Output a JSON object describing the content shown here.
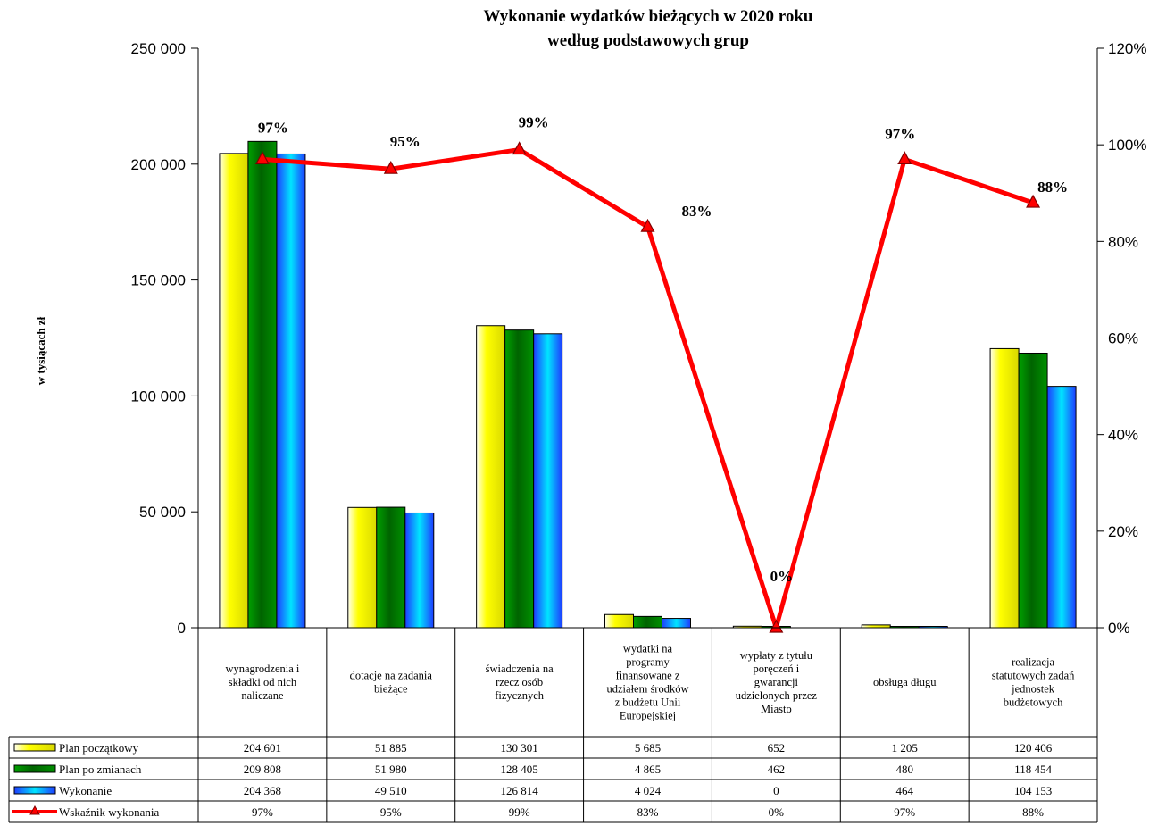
{
  "chart_data": {
    "type": "bar",
    "title": [
      "Wykonanie wydatków bieżących  w  2020 roku",
      "według  podstawowych   grup"
    ],
    "ylabel": "w  tysiącach zł",
    "ylim": [
      0,
      250000
    ],
    "y2lim": [
      0,
      1.2
    ],
    "yticks": [
      "250 000",
      "200 000",
      "150 000",
      "100 000",
      "50 000",
      "0"
    ],
    "y2ticks": [
      "120%",
      "100%",
      "80%",
      "60%",
      "40%",
      "20%",
      "0%"
    ],
    "categories": [
      [
        "wynagrodzenia i",
        "składki od nich",
        "naliczane"
      ],
      [
        "dotacje na zadania",
        "bieżące"
      ],
      [
        "świadczenia na",
        "rzecz osób",
        "fizycznych"
      ],
      [
        "wydatki na",
        "programy",
        "finansowane z",
        "udziałem  środków",
        "z budżetu Unii",
        "Europejskiej"
      ],
      [
        "wypłaty z tytułu",
        "poręczeń i",
        "gwarancji",
        "udzielonych przez",
        "Miasto"
      ],
      [
        "obsługa długu"
      ],
      [
        "realizacja",
        "statutowych zadań",
        "jednostek",
        "budżetowych"
      ]
    ],
    "series": [
      {
        "name": "Plan początkowy",
        "kind": "bar",
        "color": "#ffff00",
        "values": [
          204601,
          51885,
          130301,
          5685,
          652,
          1205,
          120406
        ],
        "labels": [
          "204 601",
          "51 885",
          "130 301",
          "5 685",
          "652",
          "1 205",
          "120 406"
        ]
      },
      {
        "name": "Plan po zmianach",
        "kind": "bar",
        "color": "#008000",
        "values": [
          209808,
          51980,
          128405,
          4865,
          462,
          480,
          118454
        ],
        "labels": [
          "209 808",
          "51 980",
          "128 405",
          "4 865",
          "462",
          "480",
          "118 454"
        ]
      },
      {
        "name": "Wykonanie",
        "kind": "bar",
        "color": "#00bfff",
        "values": [
          204368,
          49510,
          126814,
          4024,
          0,
          464,
          104153
        ],
        "labels": [
          "204 368",
          "49 510",
          "126 814",
          "4 024",
          "0",
          "464",
          "104 153"
        ]
      },
      {
        "name": "Wskaźnik  wykonania",
        "kind": "line",
        "axis": "right",
        "color": "#ff0000",
        "values": [
          0.97,
          0.95,
          0.99,
          0.83,
          0.0,
          0.97,
          0.88
        ],
        "labels": [
          "97%",
          "95%",
          "99%",
          "83%",
          "0%",
          "97%",
          "88%"
        ]
      }
    ]
  }
}
